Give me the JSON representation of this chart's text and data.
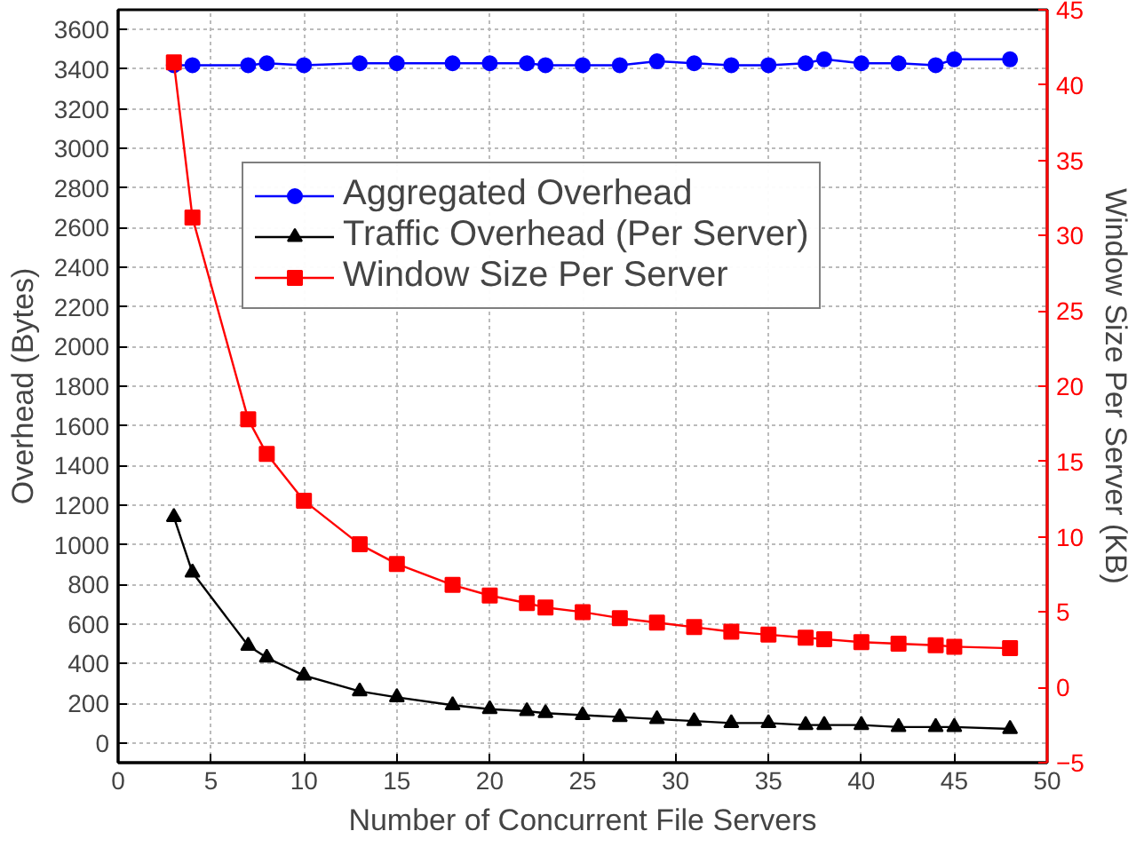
{
  "chart_data": {
    "type": "line",
    "xlabel": "Number of Concurrent File Servers",
    "ylabel": "Overhead (Bytes)",
    "y2label": "Window Size Per Server (KB)",
    "x": [
      3,
      4,
      7,
      8,
      10,
      13,
      15,
      18,
      20,
      22,
      23,
      25,
      27,
      29,
      31,
      33,
      35,
      37,
      38,
      40,
      42,
      44,
      45,
      48
    ],
    "xlim": [
      0,
      50
    ],
    "xticks": [
      0,
      5,
      10,
      15,
      20,
      25,
      30,
      35,
      40,
      45,
      50
    ],
    "ylim": [
      -100,
      3700
    ],
    "yticks": [
      0,
      200,
      400,
      600,
      800,
      1000,
      1200,
      1400,
      1600,
      1800,
      2000,
      2200,
      2400,
      2600,
      2800,
      3000,
      3200,
      3400,
      3600
    ],
    "y2lim": [
      -5,
      45
    ],
    "y2ticks": [
      -5,
      0,
      5,
      10,
      15,
      20,
      25,
      30,
      35,
      40,
      45
    ],
    "grid": true,
    "legend": "top",
    "line_style": "solid",
    "series": [
      {
        "name": "Aggregated Overhead",
        "color": "#0000ff",
        "marker": "circle",
        "values": [
          3420,
          3420,
          3420,
          3430,
          3420,
          3430,
          3430,
          3430,
          3430,
          3430,
          3420,
          3420,
          3420,
          3440,
          3430,
          3420,
          3420,
          3430,
          3450,
          3430,
          3430,
          3420,
          3450,
          3450
        ]
      },
      {
        "name": "Traffic Overhead (Per Server)",
        "color": "#000000",
        "marker": "triangle",
        "values": [
          1140,
          860,
          490,
          430,
          340,
          260,
          230,
          190,
          170,
          160,
          150,
          140,
          130,
          120,
          110,
          100,
          100,
          90,
          90,
          90,
          80,
          80,
          80,
          70
        ]
      },
      {
        "name": "Window Size Per Server",
        "color": "#ff0000",
        "marker": "square",
        "axis": "y2",
        "values": [
          41.5,
          31.2,
          17.8,
          15.5,
          12.4,
          9.5,
          8.2,
          6.8,
          6.1,
          5.6,
          5.3,
          5.0,
          4.6,
          4.3,
          4.0,
          3.7,
          3.5,
          3.3,
          3.2,
          3.0,
          2.9,
          2.8,
          2.7,
          2.6
        ]
      }
    ]
  }
}
